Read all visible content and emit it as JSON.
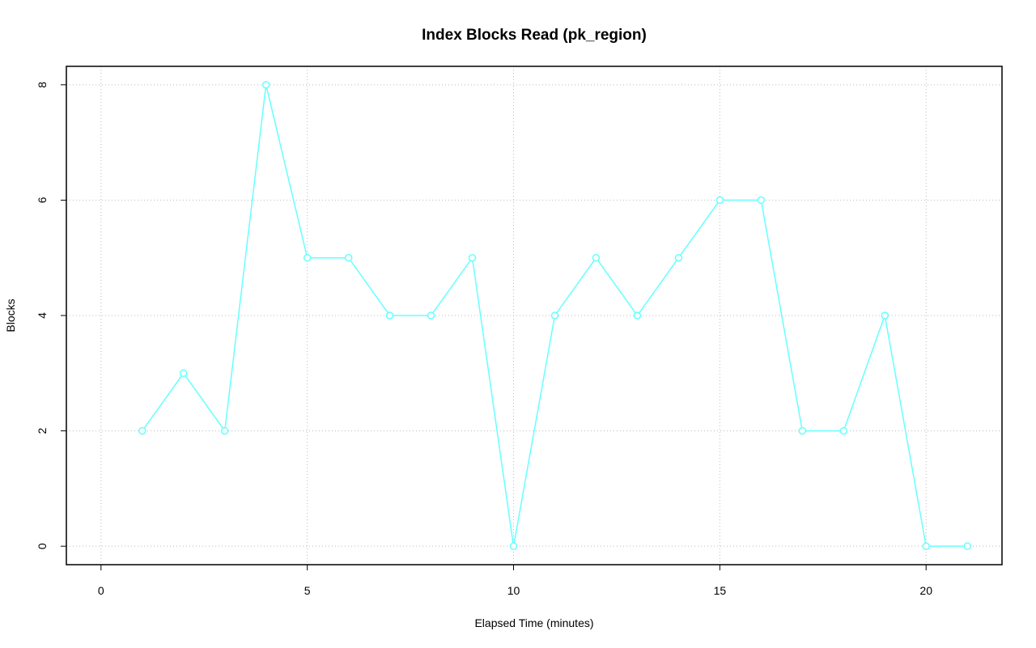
{
  "chart_data": {
    "type": "line",
    "title": "Index Blocks Read (pk_region)",
    "x_label": "Elapsed Time (minutes)",
    "y_label": "Blocks",
    "x": [
      1,
      2,
      3,
      4,
      5,
      6,
      7,
      8,
      9,
      10,
      11,
      12,
      13,
      14,
      15,
      16,
      17,
      18,
      19,
      20,
      21
    ],
    "series": [
      {
        "name": "pk_region",
        "color": "#66ffff",
        "values": [
          2,
          3,
          2,
          8,
          5,
          5,
          4,
          4,
          5,
          0,
          4,
          5,
          4,
          5,
          6,
          6,
          2,
          2,
          4,
          0,
          0
        ]
      }
    ],
    "xlim": [
      -0.84,
      21.84
    ],
    "xticks": [
      0,
      5,
      10,
      15,
      20
    ],
    "ylim": [
      -0.32,
      8.32
    ],
    "yticks": [
      0,
      2,
      4,
      6,
      8
    ],
    "grid": true,
    "legend": false
  }
}
